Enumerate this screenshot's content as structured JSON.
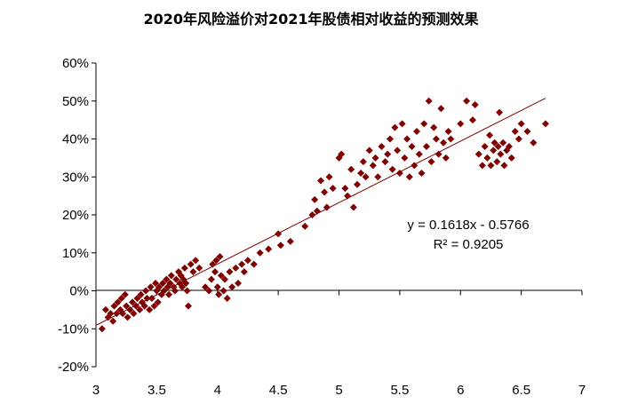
{
  "chart_data": {
    "type": "scatter",
    "title": "2020年风险溢价对2021年股债相对收益的预测效果",
    "xlabel": "",
    "ylabel": "",
    "xlim": [
      3,
      7
    ],
    "ylim": [
      -0.2,
      0.6
    ],
    "x_ticks": [
      3,
      3.5,
      4,
      4.5,
      5,
      5.5,
      6,
      6.5,
      7
    ],
    "x_tick_labels": [
      "3",
      "3.5",
      "4",
      "4.5",
      "5",
      "5.5",
      "6",
      "6.5",
      "7"
    ],
    "y_ticks": [
      -0.2,
      -0.1,
      0,
      0.1,
      0.2,
      0.3,
      0.4,
      0.5,
      0.6
    ],
    "y_tick_labels": [
      "-20%",
      "-10%",
      "0%",
      "10%",
      "20%",
      "30%",
      "40%",
      "50%",
      "60%"
    ],
    "grid": false,
    "legend": "none",
    "series": [
      {
        "marker": "diamond",
        "color": "#800000",
        "points": [
          [
            3.05,
            -0.1
          ],
          [
            3.08,
            -0.05
          ],
          [
            3.1,
            -0.07
          ],
          [
            3.12,
            -0.06
          ],
          [
            3.14,
            -0.08
          ],
          [
            3.15,
            -0.04
          ],
          [
            3.17,
            -0.06
          ],
          [
            3.18,
            -0.03
          ],
          [
            3.2,
            -0.05
          ],
          [
            3.21,
            -0.02
          ],
          [
            3.22,
            -0.06
          ],
          [
            3.24,
            -0.01
          ],
          [
            3.25,
            -0.04
          ],
          [
            3.26,
            -0.07
          ],
          [
            3.28,
            -0.05
          ],
          [
            3.3,
            -0.03
          ],
          [
            3.31,
            -0.06
          ],
          [
            3.33,
            -0.04
          ],
          [
            3.34,
            -0.02
          ],
          [
            3.36,
            -0.05
          ],
          [
            3.37,
            -0.01
          ],
          [
            3.38,
            -0.03
          ],
          [
            3.4,
            -0.04
          ],
          [
            3.41,
            0.0
          ],
          [
            3.42,
            -0.02
          ],
          [
            3.44,
            -0.05
          ],
          [
            3.45,
            0.01
          ],
          [
            3.46,
            -0.02
          ],
          [
            3.48,
            -0.04
          ],
          [
            3.49,
            0.02
          ],
          [
            3.5,
            0.0
          ],
          [
            3.51,
            -0.03
          ],
          [
            3.52,
            0.01
          ],
          [
            3.54,
            -0.01
          ],
          [
            3.55,
            0.02
          ],
          [
            3.56,
            0.0
          ],
          [
            3.58,
            0.03
          ],
          [
            3.59,
            0.01
          ],
          [
            3.6,
            -0.01
          ],
          [
            3.61,
            0.02
          ],
          [
            3.62,
            0.04
          ],
          [
            3.64,
            0.01
          ],
          [
            3.65,
            0.0
          ],
          [
            3.66,
            0.03
          ],
          [
            3.68,
            0.05
          ],
          [
            3.69,
            0.02
          ],
          [
            3.7,
            0.04
          ],
          [
            3.71,
            0.01
          ],
          [
            3.72,
            0.03
          ],
          [
            3.73,
            0.06
          ],
          [
            3.74,
            0.02
          ],
          [
            3.75,
            0.0
          ],
          [
            3.76,
            -0.04
          ],
          [
            3.78,
            0.07
          ],
          [
            3.8,
            0.05
          ],
          [
            3.82,
            0.08
          ],
          [
            3.85,
            0.06
          ],
          [
            3.9,
            0.01
          ],
          [
            3.93,
            0.0
          ],
          [
            3.95,
            0.03
          ],
          [
            3.96,
            0.07
          ],
          [
            3.98,
            0.05
          ],
          [
            3.99,
            0.08
          ],
          [
            4.0,
            0.01
          ],
          [
            4.01,
            -0.01
          ],
          [
            4.02,
            0.09
          ],
          [
            4.03,
            0.04
          ],
          [
            4.05,
            0.0
          ],
          [
            4.06,
            0.03
          ],
          [
            4.08,
            -0.02
          ],
          [
            4.1,
            0.05
          ],
          [
            4.12,
            0.01
          ],
          [
            4.15,
            0.06
          ],
          [
            4.17,
            0.02
          ],
          [
            4.2,
            0.07
          ],
          [
            4.22,
            0.05
          ],
          [
            4.25,
            0.08
          ],
          [
            4.3,
            0.07
          ],
          [
            4.35,
            0.1
          ],
          [
            4.42,
            0.11
          ],
          [
            4.5,
            0.15
          ],
          [
            4.52,
            0.12
          ],
          [
            4.6,
            0.13
          ],
          [
            4.72,
            0.17
          ],
          [
            4.78,
            0.2
          ],
          [
            4.8,
            0.24
          ],
          [
            4.82,
            0.21
          ],
          [
            4.85,
            0.29
          ],
          [
            4.88,
            0.26
          ],
          [
            4.9,
            0.22
          ],
          [
            4.92,
            0.3
          ],
          [
            4.95,
            0.27
          ],
          [
            5.0,
            0.35
          ],
          [
            5.02,
            0.36
          ],
          [
            5.05,
            0.27
          ],
          [
            5.07,
            0.25
          ],
          [
            5.1,
            0.32
          ],
          [
            5.12,
            0.22
          ],
          [
            5.15,
            0.28
          ],
          [
            5.18,
            0.31
          ],
          [
            5.2,
            0.34
          ],
          [
            5.22,
            0.3
          ],
          [
            5.25,
            0.37
          ],
          [
            5.28,
            0.33
          ],
          [
            5.3,
            0.35
          ],
          [
            5.32,
            0.3
          ],
          [
            5.35,
            0.38
          ],
          [
            5.38,
            0.34
          ],
          [
            5.4,
            0.36
          ],
          [
            5.42,
            0.4
          ],
          [
            5.44,
            0.32
          ],
          [
            5.46,
            0.43
          ],
          [
            5.48,
            0.37
          ],
          [
            5.5,
            0.31
          ],
          [
            5.52,
            0.44
          ],
          [
            5.54,
            0.35
          ],
          [
            5.56,
            0.4
          ],
          [
            5.58,
            0.3
          ],
          [
            5.6,
            0.38
          ],
          [
            5.62,
            0.33
          ],
          [
            5.64,
            0.42
          ],
          [
            5.66,
            0.36
          ],
          [
            5.68,
            0.31
          ],
          [
            5.7,
            0.44
          ],
          [
            5.72,
            0.38
          ],
          [
            5.74,
            0.5
          ],
          [
            5.76,
            0.34
          ],
          [
            5.78,
            0.43
          ],
          [
            5.8,
            0.4
          ],
          [
            5.82,
            0.36
          ],
          [
            5.84,
            0.48
          ],
          [
            5.86,
            0.39
          ],
          [
            5.88,
            0.35
          ],
          [
            5.9,
            0.42
          ],
          [
            5.92,
            0.4
          ],
          [
            6.0,
            0.44
          ],
          [
            6.05,
            0.5
          ],
          [
            6.1,
            0.45
          ],
          [
            6.12,
            0.49
          ],
          [
            6.15,
            0.36
          ],
          [
            6.18,
            0.33
          ],
          [
            6.2,
            0.38
          ],
          [
            6.22,
            0.35
          ],
          [
            6.24,
            0.41
          ],
          [
            6.25,
            0.33
          ],
          [
            6.27,
            0.37
          ],
          [
            6.28,
            0.39
          ],
          [
            6.3,
            0.34
          ],
          [
            6.31,
            0.38
          ],
          [
            6.32,
            0.47
          ],
          [
            6.33,
            0.36
          ],
          [
            6.35,
            0.39
          ],
          [
            6.36,
            0.33
          ],
          [
            6.38,
            0.37
          ],
          [
            6.4,
            0.38
          ],
          [
            6.42,
            0.35
          ],
          [
            6.45,
            0.42
          ],
          [
            6.48,
            0.4
          ],
          [
            6.5,
            0.44
          ],
          [
            6.55,
            0.42
          ],
          [
            6.6,
            0.39
          ],
          [
            6.7,
            0.44
          ]
        ]
      }
    ],
    "trendline": {
      "type": "linear",
      "slope": 0.1618,
      "intercept": -0.5766,
      "x_range": [
        3,
        6.7
      ],
      "color": "#800000",
      "equation": "y = 0.1618x - 0.5766",
      "r_squared": "R² = 0.9205"
    }
  }
}
